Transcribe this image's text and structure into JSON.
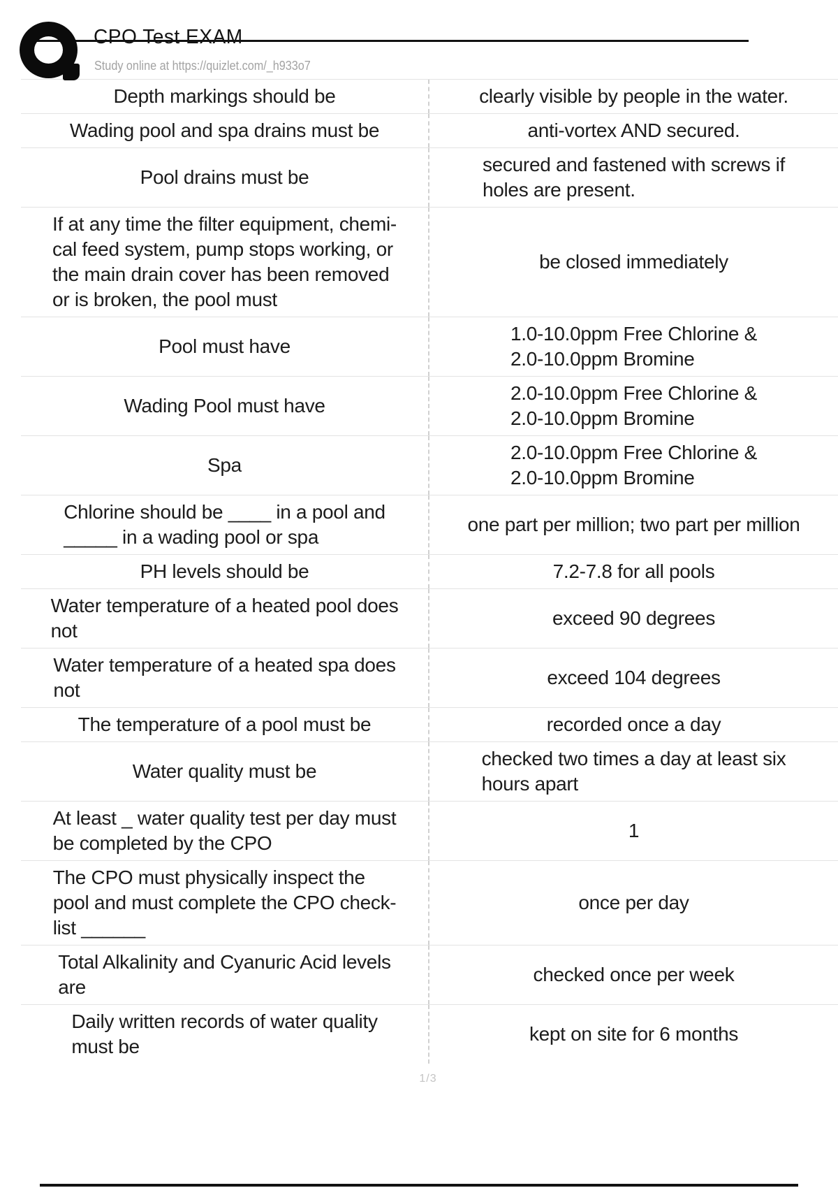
{
  "header": {
    "title": "CPO Test EXAM",
    "subtitle": "Study online at https://quizlet.com/_h933o7",
    "logo_icon": "quizlet-q-logo"
  },
  "table": {
    "columns": [
      "question",
      "answer"
    ],
    "rows": [
      {
        "question": "Depth markings should be",
        "answer": "clearly visible by people in the water."
      },
      {
        "question": "Wading pool and spa drains must be",
        "answer": "anti-vortex AND secured."
      },
      {
        "question": "Pool drains must be",
        "answer": "secured and fastened with screws if\nholes are present."
      },
      {
        "question": "If at any time the filter equipment, chemi-\ncal feed system, pump stops working, or\nthe main drain cover has been removed\nor is broken, the pool must",
        "answer": "be closed immediately"
      },
      {
        "question": "Pool must have",
        "answer": "1.0-10.0ppm Free Chlorine &\n2.0-10.0ppm Bromine"
      },
      {
        "question": "Wading Pool must have",
        "answer": "2.0-10.0ppm Free Chlorine &\n2.0-10.0ppm Bromine"
      },
      {
        "question": "Spa",
        "answer": "2.0-10.0ppm Free Chlorine &\n2.0-10.0ppm Bromine"
      },
      {
        "question": "Chlorine should be ____ in a pool and\n_____ in a wading pool or spa",
        "answer": "one part per million; two part per million"
      },
      {
        "question": "PH levels should be",
        "answer": "7.2-7.8 for all pools"
      },
      {
        "question": "Water temperature of a heated pool does\nnot",
        "answer": "exceed 90 degrees"
      },
      {
        "question": "Water temperature of a heated spa does\nnot",
        "answer": "exceed 104 degrees"
      },
      {
        "question": "The temperature of a pool must be",
        "answer": "recorded once a day"
      },
      {
        "question": "Water quality must be",
        "answer": "checked two times a day at least six\nhours apart"
      },
      {
        "question": "At least _ water quality test per day must\nbe completed by the CPO",
        "answer": "1"
      },
      {
        "question": "The CPO must physically inspect the\npool and must complete the CPO check-\nlist ______",
        "answer": "once per day"
      },
      {
        "question": "Total Alkalinity and Cyanuric Acid levels\nare",
        "answer": "checked once per week"
      },
      {
        "question": "Daily written records of water quality\nmust be",
        "answer": "kept on site for 6 months"
      }
    ]
  },
  "footer": {
    "page_indicator": "1/3"
  },
  "colors": {
    "text": "#1c1c1c",
    "subtitle_text": "#a3a3a3",
    "row_border": "#e3e3e3",
    "column_divider": "#d0d0d0",
    "page_indicator": "#c4c4c4",
    "rule_line": "#121212"
  }
}
